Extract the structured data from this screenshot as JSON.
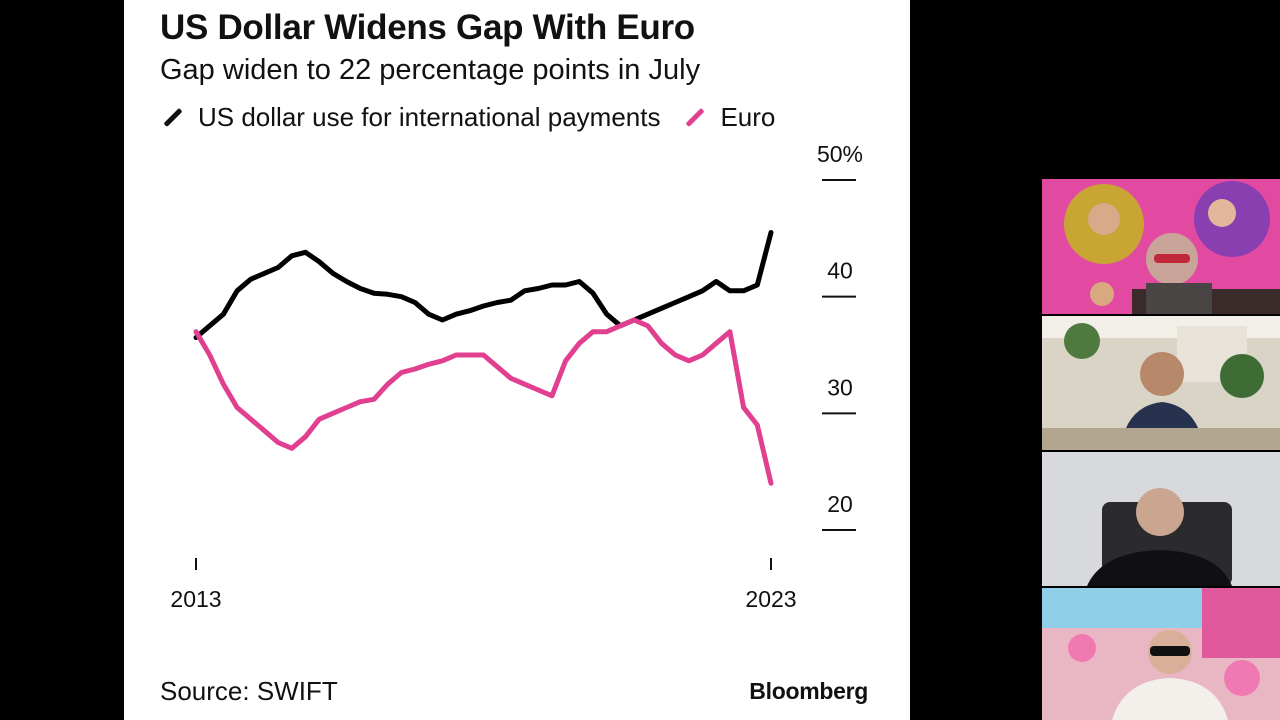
{
  "slide": {
    "title": "US Dollar Widens Gap With Euro",
    "subtitle": "Gap widen to 22 percentage points in July",
    "source": "Source: SWIFT",
    "brand": "Bloomberg"
  },
  "chart_data": {
    "type": "line",
    "title": "US Dollar Widens Gap With Euro",
    "subtitle": "Gap widen to 22 percentage points in July",
    "x": [
      "2013-01",
      "2013-04",
      "2013-07",
      "2013-10",
      "2014-01",
      "2014-04",
      "2014-07",
      "2014-10",
      "2015-01",
      "2015-04",
      "2015-07",
      "2015-10",
      "2016-01",
      "2016-04",
      "2016-07",
      "2016-10",
      "2017-01",
      "2017-04",
      "2017-07",
      "2017-10",
      "2018-01",
      "2018-04",
      "2018-07",
      "2018-10",
      "2019-01",
      "2019-04",
      "2019-07",
      "2019-10",
      "2020-01",
      "2020-04",
      "2020-07",
      "2020-10",
      "2021-01",
      "2021-04",
      "2021-07",
      "2021-10",
      "2022-01",
      "2022-04",
      "2022-07",
      "2022-10",
      "2023-01",
      "2023-04",
      "2023-07"
    ],
    "series": [
      {
        "name": "US dollar use for international payments",
        "color": "#000000",
        "values": [
          36.5,
          37.5,
          38.5,
          40.5,
          41.5,
          42,
          42.5,
          43.5,
          43.8,
          43,
          42,
          41.3,
          40.7,
          40.3,
          40.2,
          40,
          39.5,
          38.5,
          38,
          38.5,
          38.8,
          39.2,
          39.5,
          39.7,
          40.5,
          40.7,
          41,
          41,
          41.3,
          40.3,
          38.5,
          37.5,
          38,
          38.5,
          39,
          39.5,
          40,
          40.5,
          41.3,
          40.5,
          40.5,
          41,
          45.5
        ]
      },
      {
        "name": "Euro",
        "color": "#e0408f",
        "values": [
          37,
          35,
          32.5,
          30.5,
          29.5,
          28.5,
          27.5,
          27,
          28,
          29.5,
          30,
          30.5,
          31,
          31.2,
          32.5,
          33.5,
          33.8,
          34.2,
          34.5,
          35,
          35,
          35,
          34,
          33,
          32.5,
          32,
          31.5,
          34.5,
          36,
          37,
          37,
          37.5,
          38,
          37.5,
          36,
          35,
          34.5,
          35,
          36,
          37,
          30.5,
          29,
          24
        ]
      }
    ],
    "x_ticks": [
      "2013",
      "2023"
    ],
    "y_ticks": [
      "50%",
      "40",
      "30",
      "20"
    ],
    "ylim": [
      20,
      50
    ],
    "grid": false,
    "legend": "top-left"
  },
  "video_tiles": [
    {
      "label": "participant-1"
    },
    {
      "label": "participant-2"
    },
    {
      "label": "participant-3"
    },
    {
      "label": "participant-4"
    }
  ]
}
